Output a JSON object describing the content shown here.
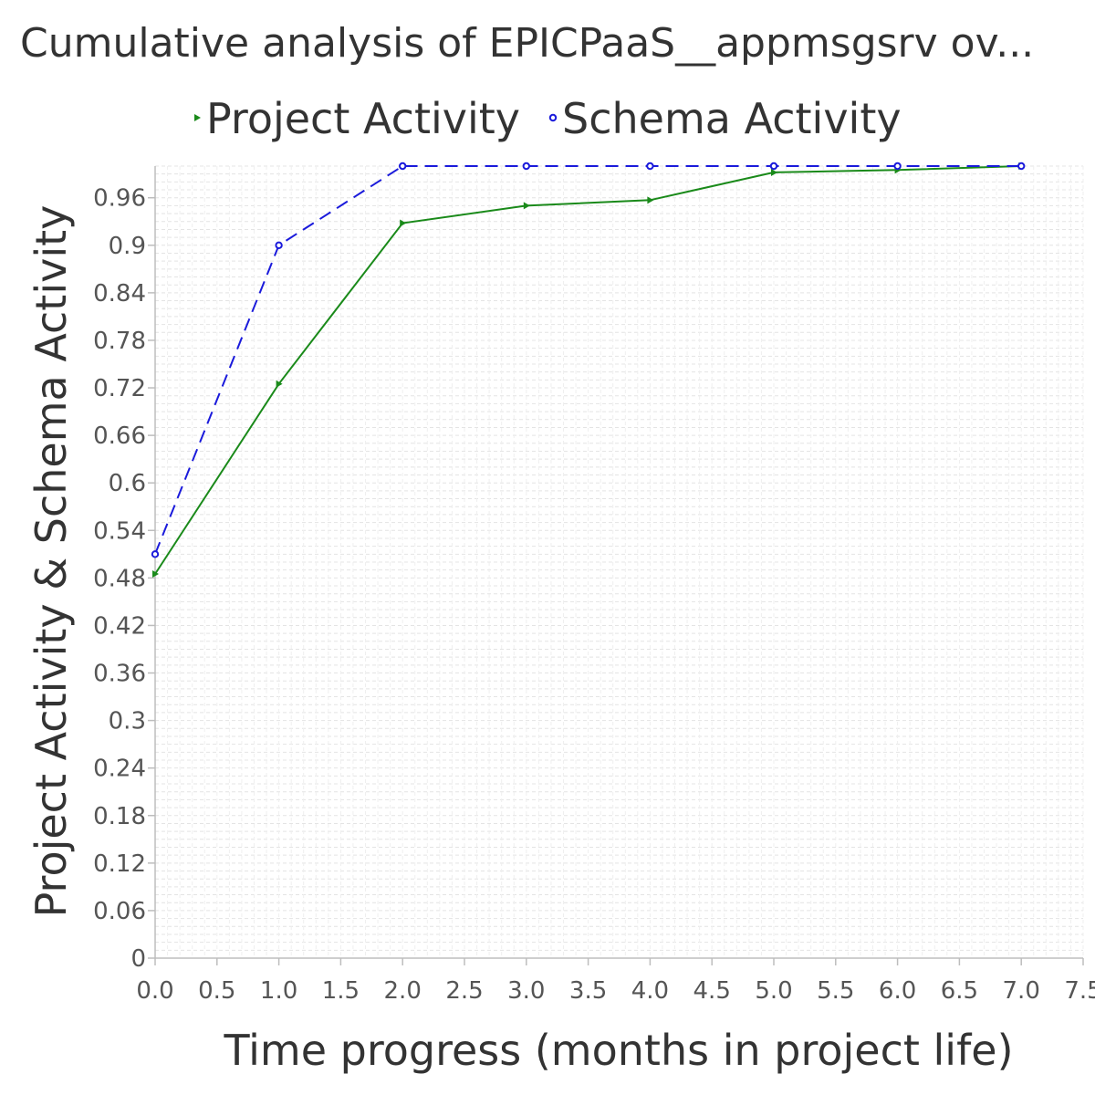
{
  "chart_data": {
    "type": "line",
    "title": "Cumulative analysis of EPICPaaS__appmsgsrv ov...",
    "xlabel": "Time progress (months in project life)",
    "ylabel": "Project Activity & Schema Activity",
    "xlim": [
      0,
      7.5
    ],
    "ylim": [
      0,
      1.0
    ],
    "x_ticks": [
      "0.0",
      "0.5",
      "1.0",
      "1.5",
      "2.0",
      "2.5",
      "3.0",
      "3.5",
      "4.0",
      "4.5",
      "5.0",
      "5.5",
      "6.0",
      "6.5",
      "7.0",
      "7.5"
    ],
    "y_ticks": [
      "0",
      "0.06",
      "0.12",
      "0.18",
      "0.24",
      "0.3",
      "0.36",
      "0.42",
      "0.48",
      "0.54",
      "0.6",
      "0.66",
      "0.72",
      "0.78",
      "0.84",
      "0.9",
      "0.96"
    ],
    "grid": true,
    "legend_position": "top",
    "series": [
      {
        "name": "Project Activity",
        "color": "#1a8a1a",
        "line_style": "solid",
        "marker": "triangle-right",
        "x": [
          0,
          1,
          2,
          3,
          4,
          5,
          6,
          7
        ],
        "y": [
          0.485,
          0.725,
          0.928,
          0.95,
          0.957,
          0.992,
          0.995,
          1.0
        ]
      },
      {
        "name": "Schema Activity",
        "color": "#1a1adb",
        "line_style": "dashed",
        "marker": "circle",
        "x": [
          0,
          1,
          2,
          3,
          4,
          5,
          6,
          7
        ],
        "y": [
          0.51,
          0.9,
          1.0,
          1.0,
          1.0,
          1.0,
          1.0,
          1.0
        ]
      }
    ]
  }
}
